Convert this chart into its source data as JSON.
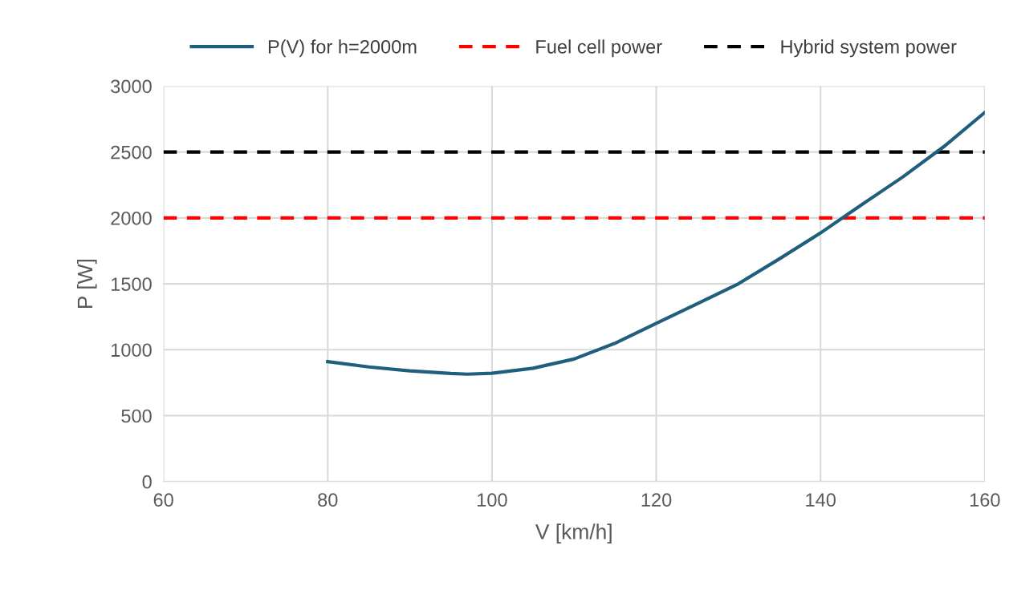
{
  "chart_data": {
    "type": "line",
    "xlabel": "V [km/h]",
    "ylabel": "P [W]",
    "x": [
      80,
      85,
      90,
      95,
      97,
      100,
      105,
      110,
      115,
      120,
      125,
      130,
      135,
      140,
      145,
      150,
      155,
      160
    ],
    "series": [
      {
        "name": "P(V) for h=2000m",
        "color": "#1f5f7d",
        "values": [
          910,
          870,
          840,
          820,
          815,
          822,
          860,
          930,
          1050,
          1200,
          1350,
          1500,
          1690,
          1886,
          2100,
          2310,
          2540,
          2800
        ]
      }
    ],
    "ref_lines": [
      {
        "axis": "y",
        "value": 2000,
        "label": "Fuel cell power",
        "color": "#ff0000",
        "line_style": "dashed"
      },
      {
        "axis": "y",
        "value": 2500,
        "label": "Hybrid system power",
        "color": "#000000",
        "line_style": "dashed"
      }
    ],
    "xlim": [
      60,
      160
    ],
    "xticks": [
      60,
      80,
      100,
      120,
      140,
      160
    ],
    "ylim": [
      0,
      3000
    ],
    "yticks": [
      0,
      500,
      1000,
      1500,
      2000,
      2500,
      3000
    ],
    "grid": true,
    "legend": "top",
    "line_style": "solid",
    "marker": "none"
  }
}
